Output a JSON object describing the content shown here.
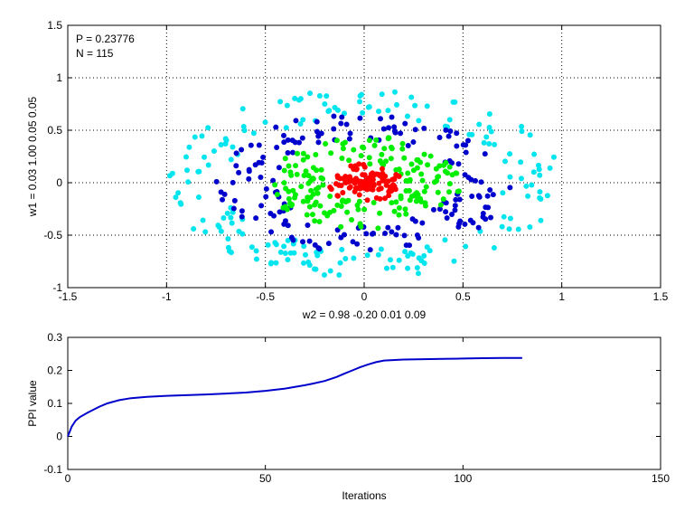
{
  "chart_data": [
    {
      "type": "scatter",
      "xlim": [
        -1.5,
        1.5
      ],
      "ylim": [
        -1,
        1.5
      ],
      "xticks": [
        -1.5,
        -1,
        -0.5,
        0,
        0.5,
        1,
        1.5
      ],
      "yticks": [
        -1,
        -0.5,
        0,
        0.5,
        1,
        1.5
      ],
      "xtick_labels": [
        "-1.5",
        "-1",
        "-0.5",
        "0",
        "0.5",
        "1",
        "1.5"
      ],
      "ytick_labels": [
        "-1",
        "-0.5",
        "0",
        "0.5",
        "1",
        "1.5"
      ],
      "xlabel": "w2 = 0.98  -0.20  0.01  0.09",
      "ylabel": "w1 = 0.03  1.00  0.05  0.05",
      "grid": true,
      "annotations": [
        "P = 0.23776",
        "N = 115"
      ],
      "series": [
        {
          "color": "#00e5ee",
          "ring": [
            0.7,
            1.0
          ]
        },
        {
          "color": "#0000cc",
          "ring": [
            0.45,
            0.75
          ]
        },
        {
          "color": "#00ee00",
          "ring": [
            0.2,
            0.5
          ]
        },
        {
          "color": "#ff0000",
          "ring": [
            0.0,
            0.2
          ]
        }
      ]
    },
    {
      "type": "line",
      "xlim": [
        0,
        150
      ],
      "ylim": [
        -0.1,
        0.3
      ],
      "xticks": [
        0,
        50,
        100,
        150
      ],
      "yticks": [
        -0.1,
        0,
        0.1,
        0.2,
        0.3
      ],
      "xtick_labels": [
        "0",
        "50",
        "100",
        "150"
      ],
      "ytick_labels": [
        "-0.1",
        "0",
        "0.1",
        "0.2",
        "0.3"
      ],
      "xlabel": "Iterations",
      "ylabel": "PPI value",
      "grid": false,
      "series": [
        {
          "color": "#0000cc",
          "x": [
            0,
            1,
            2,
            3,
            5,
            8,
            10,
            13,
            16,
            20,
            25,
            30,
            35,
            40,
            45,
            50,
            55,
            60,
            62,
            65,
            68,
            70,
            72,
            74,
            76,
            78,
            80,
            85,
            90,
            95,
            100,
            105,
            110,
            115
          ],
          "y": [
            0.0,
            0.03,
            0.048,
            0.058,
            0.072,
            0.09,
            0.1,
            0.11,
            0.116,
            0.12,
            0.123,
            0.125,
            0.127,
            0.13,
            0.133,
            0.138,
            0.145,
            0.155,
            0.16,
            0.168,
            0.18,
            0.19,
            0.2,
            0.21,
            0.218,
            0.225,
            0.23,
            0.233,
            0.234,
            0.235,
            0.236,
            0.237,
            0.2377,
            0.2378
          ]
        }
      ]
    }
  ]
}
